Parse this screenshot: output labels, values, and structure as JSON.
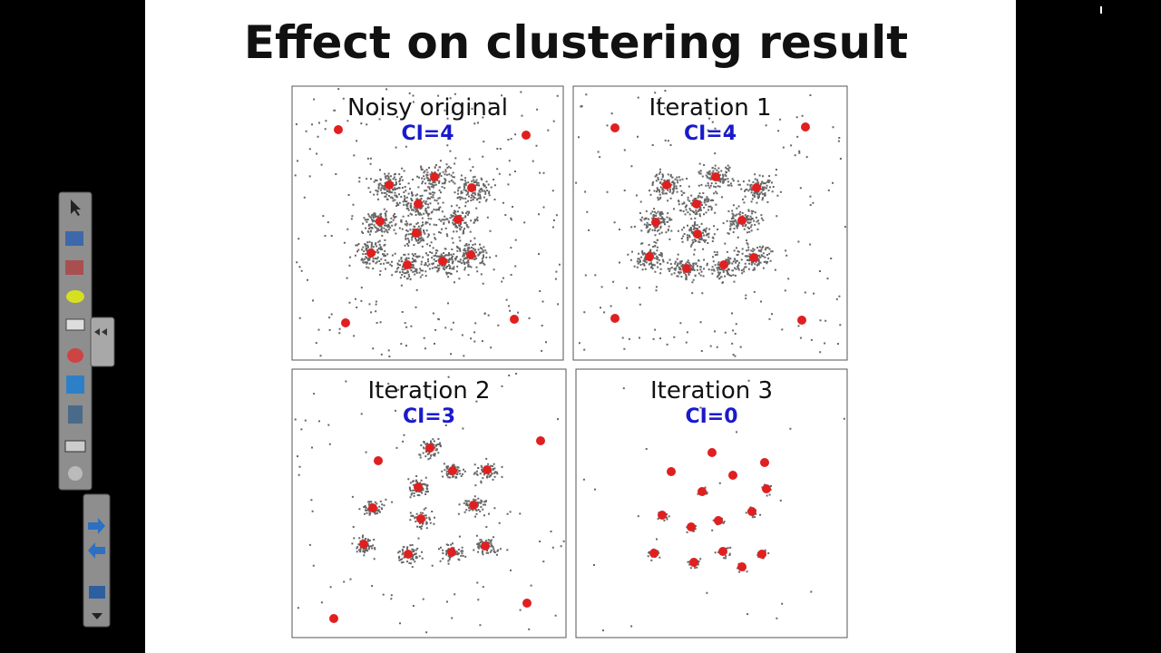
{
  "slide": {
    "title": "Effect on clustering result",
    "panels": [
      {
        "title": "Noisy original",
        "label": "CI=4"
      },
      {
        "title": "Iteration 1",
        "label": "CI=4"
      },
      {
        "title": "Iteration 2",
        "label": "CI=3"
      },
      {
        "title": "Iteration 3",
        "label": "CI=0"
      }
    ]
  }
}
